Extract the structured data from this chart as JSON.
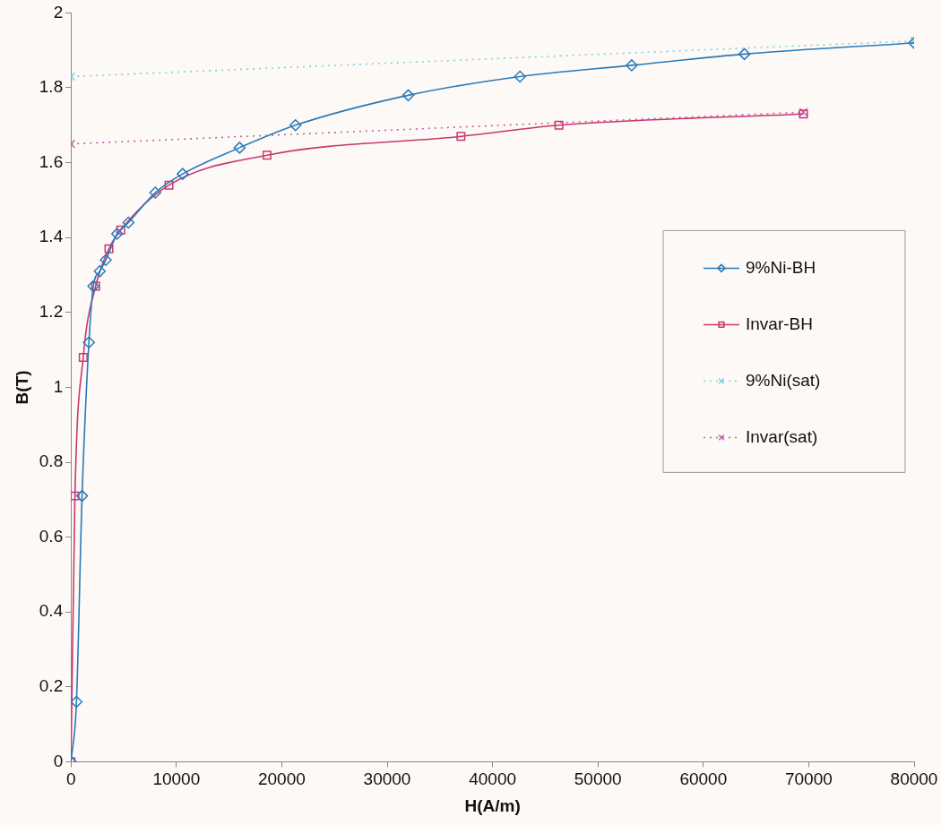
{
  "chart_data": {
    "type": "line",
    "xlabel": "H(A/m)",
    "ylabel": "B(T)",
    "xlim": [
      0,
      80000
    ],
    "xticks": [
      0,
      10000,
      20000,
      30000,
      40000,
      50000,
      60000,
      70000,
      80000
    ],
    "ylim": [
      0,
      2
    ],
    "yticks": [
      0,
      0.2,
      0.4,
      0.6,
      0.8,
      1,
      1.2,
      1.4,
      1.6,
      1.8,
      2
    ],
    "grid": false,
    "legend": "right",
    "series": [
      {
        "name": "9%Ni-BH",
        "color": "#2a7ab8",
        "marker": "diamond",
        "line_style": "solid",
        "x": [
          0,
          520,
          1050,
          1700,
          2120,
          2730,
          3300,
          4380,
          5450,
          8000,
          10600,
          16000,
          21300,
          32000,
          42600,
          53200,
          63900,
          80000
        ],
        "values": [
          0,
          0.16,
          0.71,
          1.12,
          1.27,
          1.31,
          1.34,
          1.41,
          1.44,
          1.52,
          1.57,
          1.64,
          1.7,
          1.78,
          1.83,
          1.86,
          1.89,
          1.92
        ]
      },
      {
        "name": "Invar-BH",
        "color": "#c8386e",
        "marker": "square",
        "line_style": "solid",
        "x": [
          0,
          375,
          1160,
          2340,
          3600,
          4720,
          9300,
          18600,
          37000,
          46300,
          69500
        ],
        "values": [
          0,
          0.71,
          1.08,
          1.27,
          1.37,
          1.42,
          1.54,
          1.62,
          1.67,
          1.7,
          1.73
        ]
      },
      {
        "name": "9%Ni(sat)",
        "color": "#7fd0e0",
        "marker": "cross",
        "line_style": "dotted",
        "x": [
          0,
          80000
        ],
        "values": [
          1.83,
          1.925
        ]
      },
      {
        "name": "Invar(sat)",
        "color": "#c060b0",
        "marker": "cross",
        "line_style": "dotted",
        "x": [
          0,
          69500
        ],
        "values": [
          1.65,
          1.735
        ]
      }
    ]
  }
}
